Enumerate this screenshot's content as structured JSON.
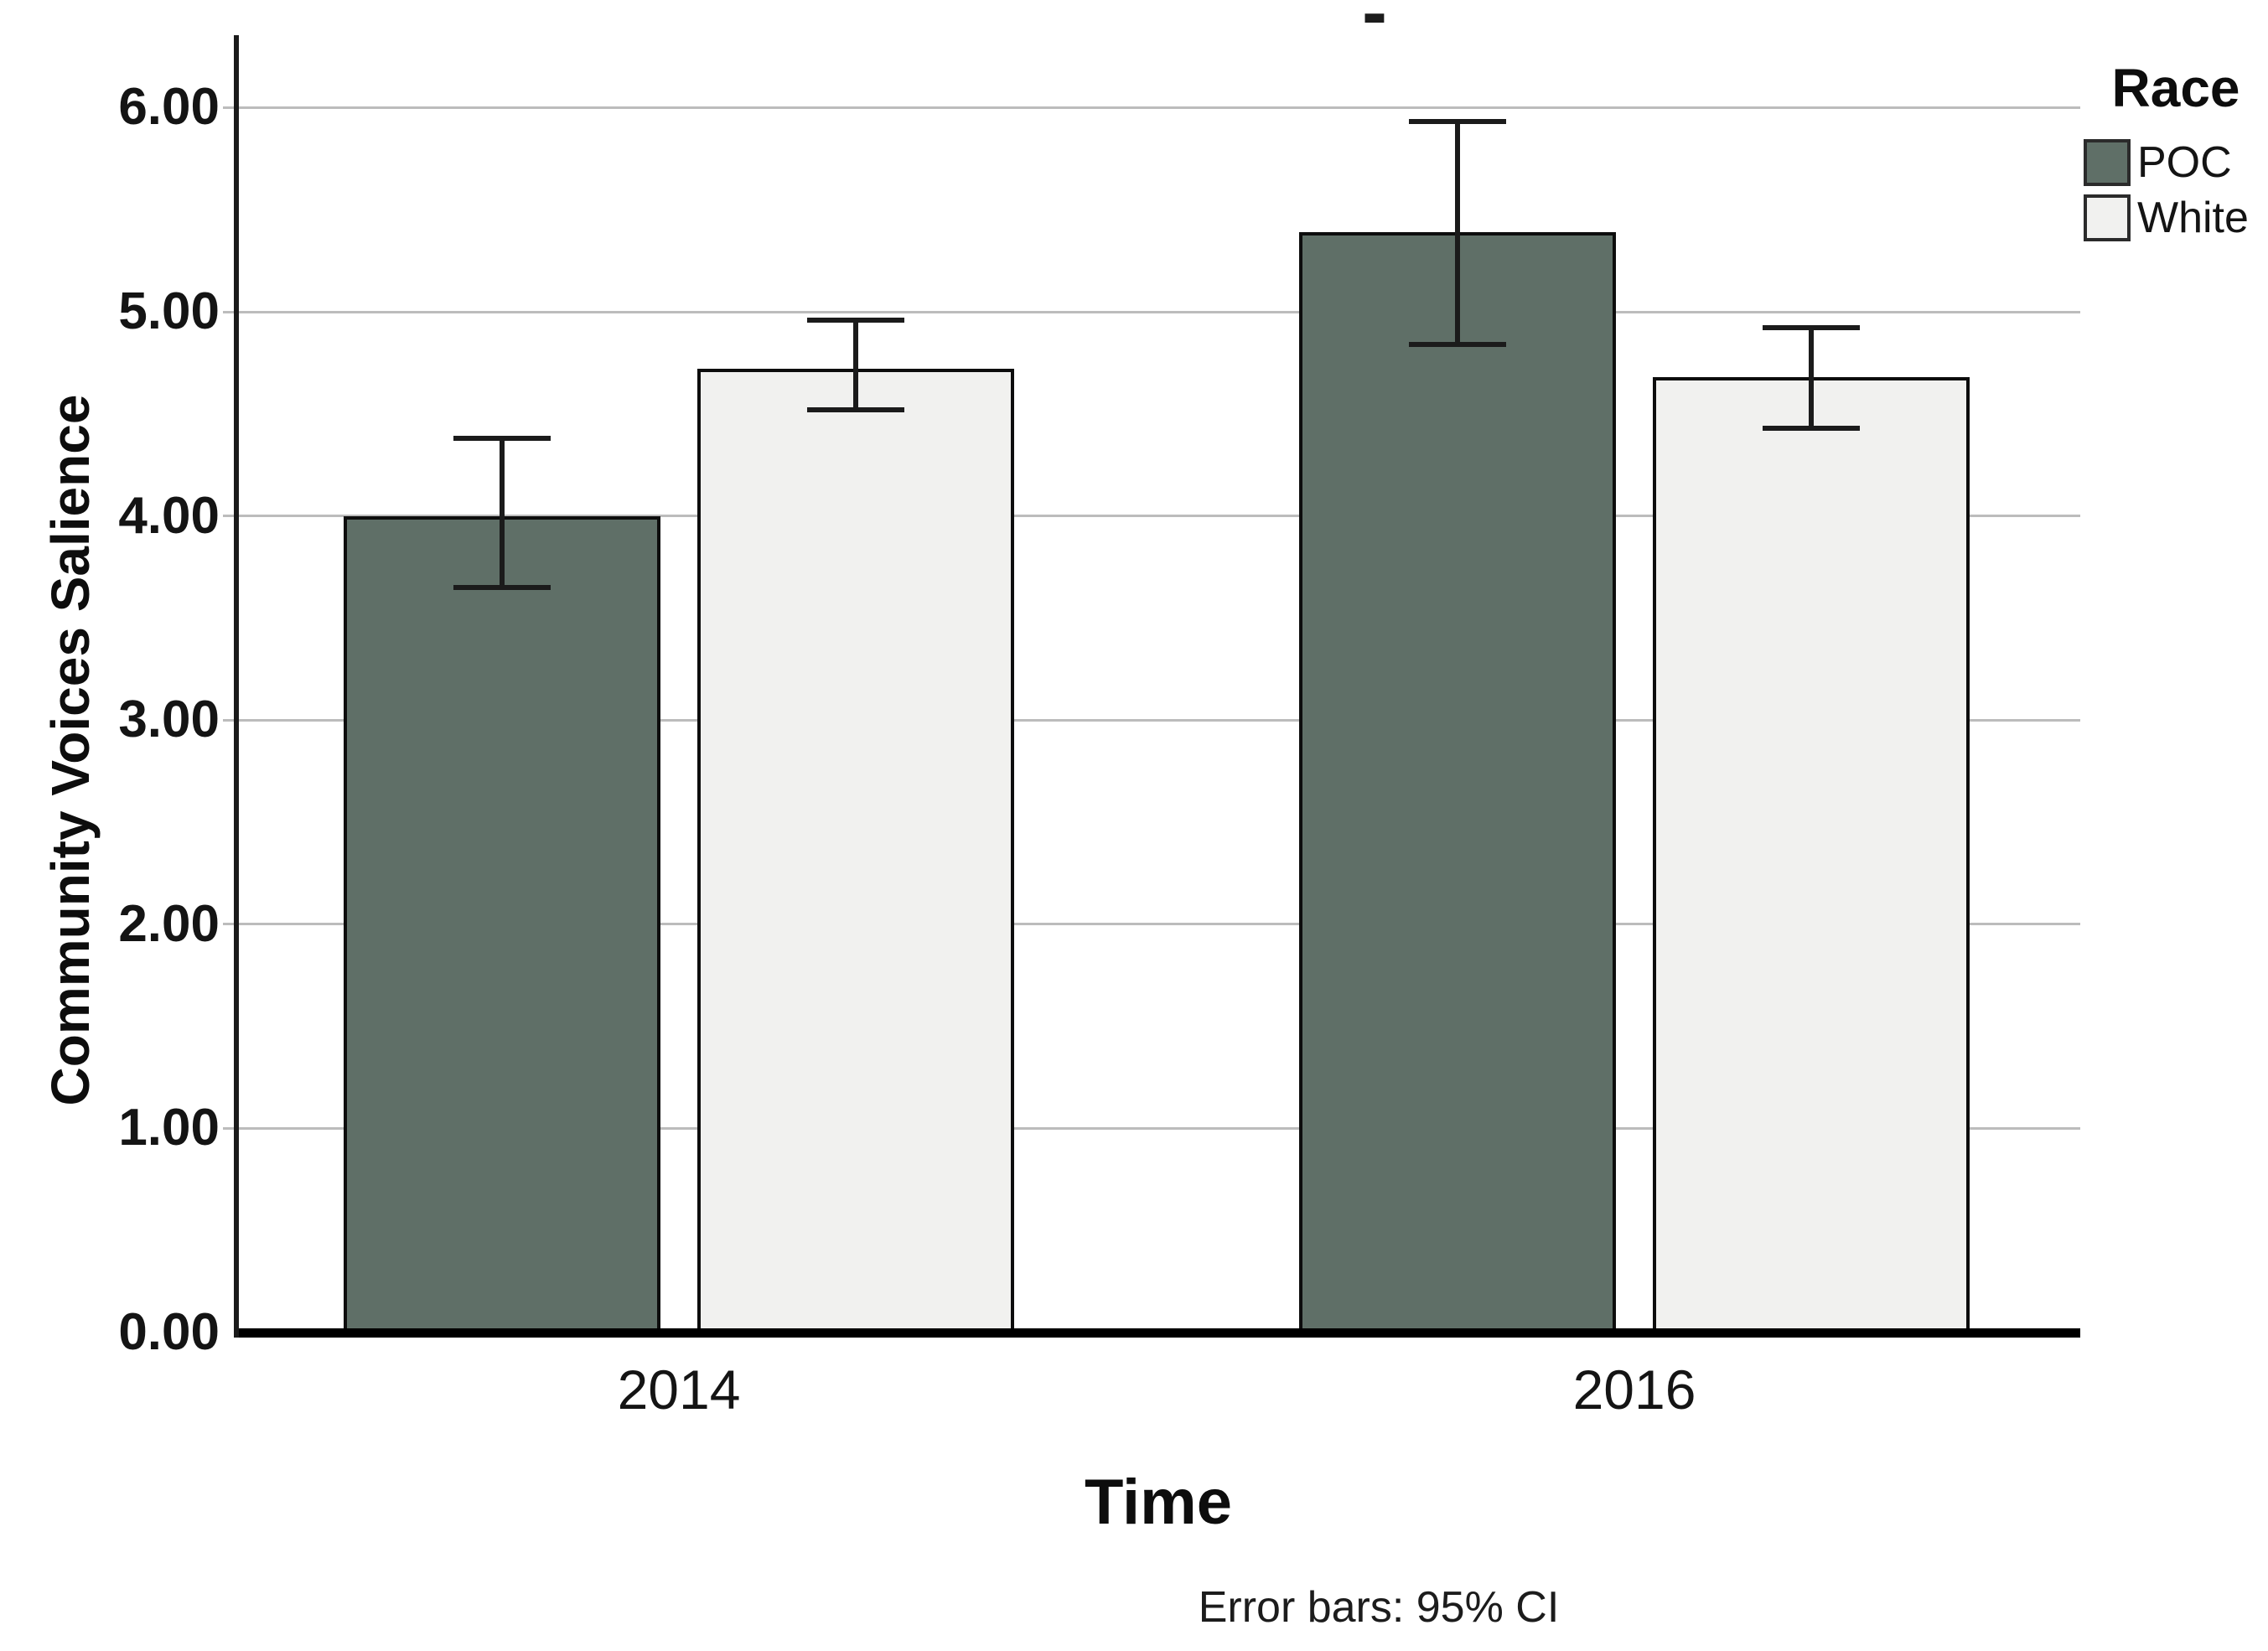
{
  "figure": {
    "title_fragment": "-",
    "background": "#ffffff"
  },
  "chart_data": {
    "type": "bar",
    "title": "",
    "xlabel": "Time",
    "ylabel": "Community Voices Salience",
    "footnote": "Error bars: 95% CI",
    "categories": [
      "2014",
      "2016"
    ],
    "series": [
      {
        "name": "POC",
        "color": "#5f6f67",
        "values": [
          4.0,
          5.39
        ],
        "ci_low": [
          3.65,
          4.84
        ],
        "ci_high": [
          4.38,
          5.93
        ]
      },
      {
        "name": "White",
        "color": "#f1f1ef",
        "values": [
          4.72,
          4.68
        ],
        "ci_low": [
          4.52,
          4.43
        ],
        "ci_high": [
          4.96,
          4.92
        ]
      }
    ],
    "ylim": [
      0,
      6.34
    ],
    "ytick_labels": [
      "0.00",
      "1.00",
      "2.00",
      "3.00",
      "4.00",
      "5.00",
      "6.00"
    ],
    "ytick_values": [
      0,
      1,
      2,
      3,
      4,
      5,
      6
    ],
    "grid": true,
    "legend": {
      "title": "Race",
      "position": "top-right"
    }
  }
}
